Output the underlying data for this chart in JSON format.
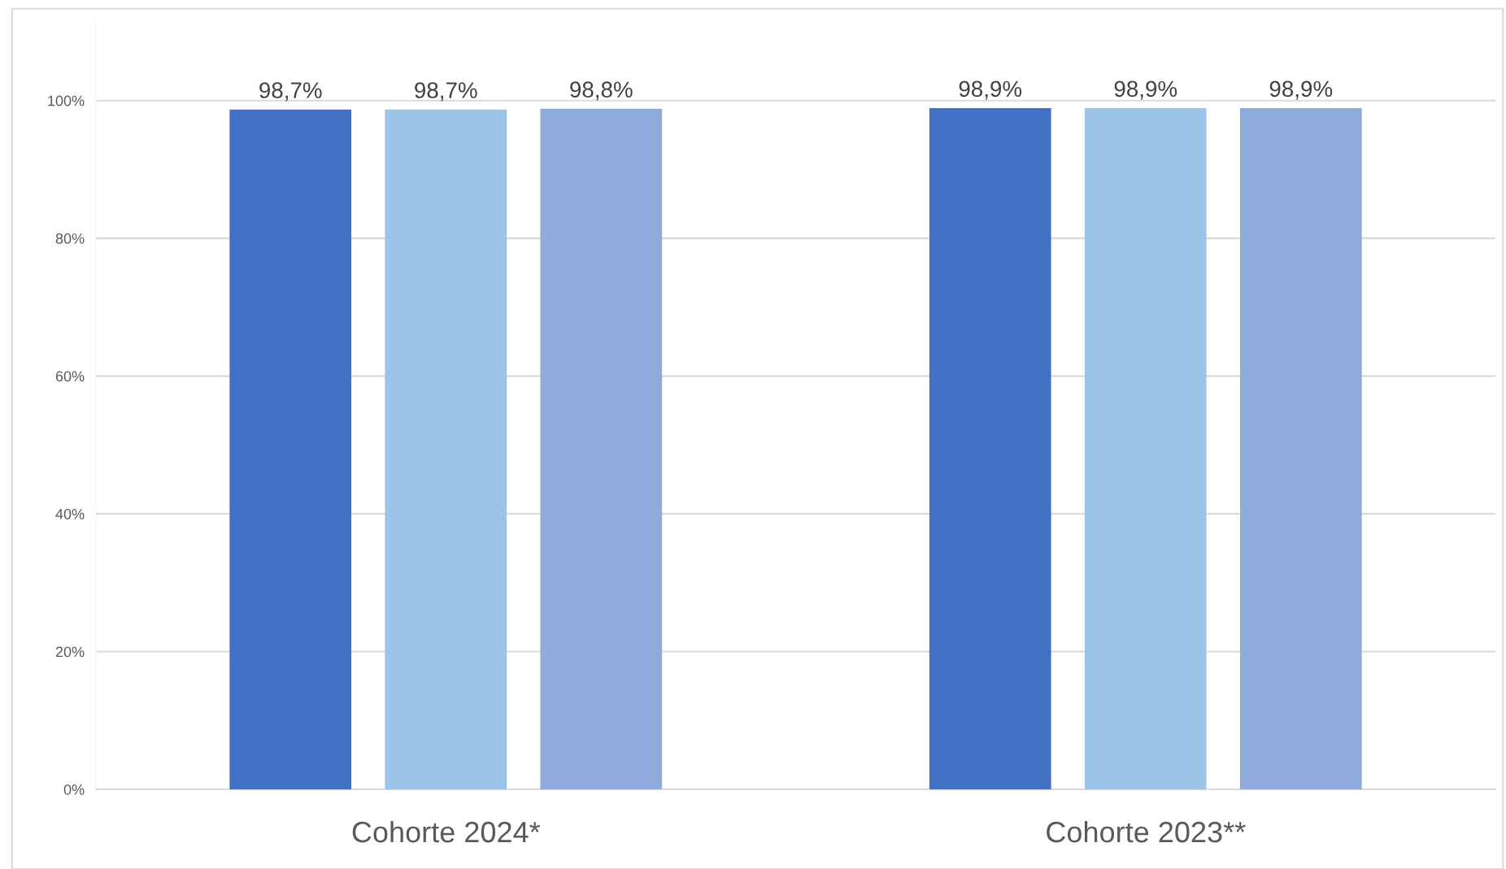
{
  "chart_data": {
    "type": "bar",
    "categories": [
      "Cohorte 2024*",
      "Cohorte 2023**"
    ],
    "series": [
      {
        "color": "#4270c4",
        "values": [
          98.7,
          98.9
        ],
        "value_labels": [
          "98,7%",
          "98,9%"
        ]
      },
      {
        "color": "#9dc3e6",
        "values": [
          98.7,
          98.9
        ],
        "value_labels": [
          "98,7%",
          "98,9%"
        ]
      },
      {
        "color": "#8eabdc",
        "values": [
          98.8,
          98.9
        ],
        "value_labels": [
          "98,8%",
          "98,9%"
        ]
      }
    ],
    "ylim": [
      0,
      112
    ],
    "yticks": [
      {
        "value": 0,
        "label": "0%"
      },
      {
        "value": 20,
        "label": "20%"
      },
      {
        "value": 40,
        "label": "40%"
      },
      {
        "value": 60,
        "label": "60%"
      },
      {
        "value": 80,
        "label": "80%"
      },
      {
        "value": 100,
        "label": "100%"
      }
    ],
    "grid": "y"
  }
}
